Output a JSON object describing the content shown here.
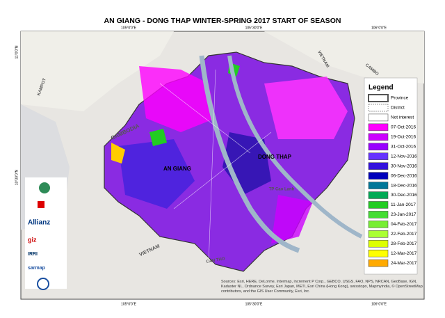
{
  "title": "AN GIANG - DONG THAP WINTER-SPRING 2017 START OF SEASON",
  "legend": {
    "title": "Legend",
    "items": [
      {
        "label": "Province",
        "color": "#ffffff",
        "kind": "province"
      },
      {
        "label": "District",
        "color": "#ffffff",
        "kind": "district"
      },
      {
        "label": "Not interest",
        "color": "#ffffff",
        "kind": "fill"
      },
      {
        "label": "07-Oct-2016",
        "color": "#ff00ff",
        "kind": "fill"
      },
      {
        "label": "19-Oct-2016",
        "color": "#cc00ff",
        "kind": "fill"
      },
      {
        "label": "31-Oct-2016",
        "color": "#9900ff",
        "kind": "fill"
      },
      {
        "label": "12-Nov-2016",
        "color": "#6633ff",
        "kind": "fill"
      },
      {
        "label": "30-Nov-2016",
        "color": "#3311dd",
        "kind": "fill"
      },
      {
        "label": "06-Dec-2016",
        "color": "#0000bb",
        "kind": "fill"
      },
      {
        "label": "18-Dec-2016",
        "color": "#007799",
        "kind": "fill"
      },
      {
        "label": "30-Dec-2016",
        "color": "#00aa55",
        "kind": "fill"
      },
      {
        "label": "11-Jan-2017",
        "color": "#22cc22",
        "kind": "fill"
      },
      {
        "label": "23-Jan-2017",
        "color": "#44dd33",
        "kind": "fill"
      },
      {
        "label": "04-Feb-2017",
        "color": "#77ee33",
        "kind": "fill"
      },
      {
        "label": "22-Feb-2017",
        "color": "#aaff33",
        "kind": "fill"
      },
      {
        "label": "28-Feb-2017",
        "color": "#ddff00",
        "kind": "fill"
      },
      {
        "label": "12-Mar-2017",
        "color": "#ffff00",
        "kind": "fill"
      },
      {
        "label": "24-Mar-2017",
        "color": "#ffaa00",
        "kind": "fill"
      }
    ]
  },
  "coords": {
    "top": [
      "105°0'0\"E",
      "105°30'0\"E",
      "106°0'0\"E"
    ],
    "bottom": [
      "105°0'0\"E",
      "105°30'0\"E",
      "106°0'0\"E"
    ],
    "left": [
      "11°0'0\"N",
      "10°30'0\"N"
    ]
  },
  "places": [
    "CAMBODIA",
    "VIETNAM",
    "KAMPOT",
    "AN GIANG",
    "DONG THAP",
    "TP Cao Lanh",
    "CAN THO",
    "VIETNAM",
    "CAMBO"
  ],
  "logos": [
    "Allianz",
    "giz",
    "IRRI",
    "sarmap"
  ],
  "sources": "Sources: Esri, HERE, DeLorme, Intermap, increment P Corp., GEBCO, USGS, FAO, NPS, NRCAN, GeoBase, IGN, Kadaster NL, Ordnance Survey, Esri Japan, METI, Esri China (Hong Kong), swisstopo, Mapmyindia, © OpenStreetMap contributors, and the GIS User Community, Esri, Inc."
}
